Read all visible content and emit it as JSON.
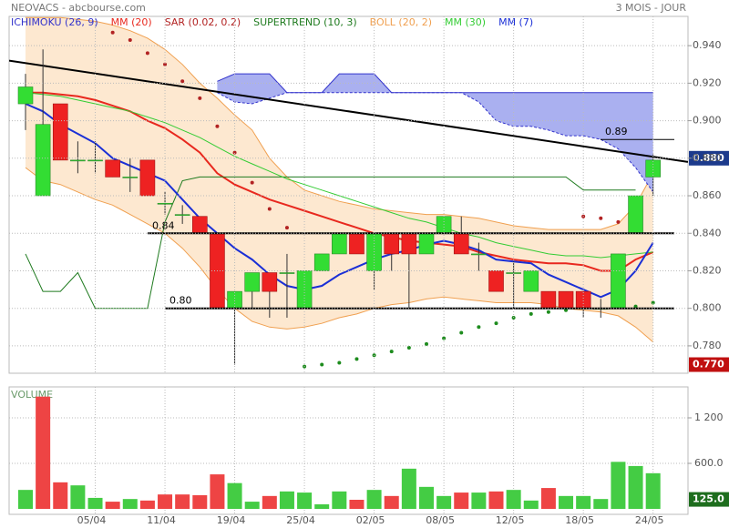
{
  "chart_data": [
    {
      "type": "candlestick",
      "title": "NEOVACS - abcbourse.com",
      "subtitle": "3 MOIS - JOUR",
      "categories": [
        null,
        null,
        null,
        null,
        "05/04",
        null,
        null,
        null,
        "11/04",
        null,
        null,
        null,
        "19/04",
        null,
        null,
        null,
        "25/04",
        null,
        null,
        null,
        "02/05",
        null,
        null,
        null,
        "08/05",
        null,
        null,
        null,
        "12/05",
        null,
        null,
        null,
        "18/05",
        null,
        null,
        null,
        "24/05"
      ],
      "open": [
        0.909,
        0.86,
        0.909,
        0.879,
        0.879,
        0.879,
        0.87,
        0.879,
        0.856,
        0.85,
        0.849,
        0.84,
        0.8,
        0.809,
        0.819,
        0.819,
        0.8,
        0.82,
        0.829,
        0.84,
        0.82,
        0.84,
        0.84,
        0.829,
        0.84,
        0.84,
        0.829,
        0.82,
        0.819,
        0.809,
        0.809,
        0.809,
        0.809,
        0.8,
        0.8,
        0.84,
        0.87
      ],
      "high": [
        0.925,
        0.938,
        0.909,
        0.889,
        0.889,
        0.879,
        0.88,
        0.879,
        0.862,
        0.855,
        0.849,
        0.84,
        0.809,
        0.819,
        0.819,
        0.829,
        0.82,
        0.829,
        0.84,
        0.84,
        0.84,
        0.84,
        0.84,
        0.84,
        0.849,
        0.849,
        0.835,
        0.82,
        0.825,
        0.82,
        0.809,
        0.809,
        0.809,
        0.805,
        0.829,
        0.86,
        0.882
      ],
      "low": [
        0.895,
        0.86,
        0.879,
        0.872,
        0.872,
        0.87,
        0.862,
        0.86,
        0.85,
        0.845,
        0.84,
        0.8,
        0.77,
        0.8,
        0.795,
        0.795,
        0.8,
        0.82,
        0.829,
        0.829,
        0.81,
        0.82,
        0.8,
        0.829,
        0.84,
        0.829,
        0.82,
        0.809,
        0.8,
        0.809,
        0.8,
        0.8,
        0.795,
        0.795,
        0.8,
        0.84,
        0.86
      ],
      "close": [
        0.918,
        0.898,
        0.879,
        0.879,
        0.879,
        0.87,
        0.87,
        0.86,
        0.856,
        0.85,
        0.84,
        0.8,
        0.809,
        0.819,
        0.809,
        0.819,
        0.82,
        0.829,
        0.84,
        0.829,
        0.84,
        0.829,
        0.829,
        0.84,
        0.849,
        0.829,
        0.829,
        0.809,
        0.819,
        0.82,
        0.8,
        0.8,
        0.8,
        0.8,
        0.829,
        0.86,
        0.879
      ],
      "up_color": "#33dd33",
      "down_color": "#ee2222",
      "ylim": [
        0.7654,
        0.9556
      ],
      "yticks": [
        {
          "value": 0.78,
          "label": "0.780"
        },
        {
          "value": 0.8,
          "label": "0.800"
        },
        {
          "value": 0.82,
          "label": "0.820"
        },
        {
          "value": 0.84,
          "label": "0.840"
        },
        {
          "value": 0.86,
          "label": "0.860"
        },
        {
          "value": 0.88,
          "label": "0.880"
        },
        {
          "value": 0.9,
          "label": "0.900"
        },
        {
          "value": 0.92,
          "label": "0.920"
        },
        {
          "value": 0.94,
          "label": "0.940"
        }
      ],
      "grid": true,
      "series": [
        {
          "name": "ICHIMOKU (26, 9)",
          "color": "#3333cc",
          "fill": "#aab0f0",
          "span_a": [
            null,
            null,
            null,
            null,
            null,
            null,
            null,
            null,
            null,
            null,
            null,
            0.921,
            0.925,
            0.925,
            0.925,
            0.915,
            0.915,
            0.915,
            0.925,
            0.925,
            0.925,
            0.915,
            0.915,
            0.915,
            0.915,
            0.915,
            0.915,
            0.915,
            0.915,
            0.915,
            0.915,
            0.915,
            0.915,
            0.915,
            0.915,
            0.915,
            0.915
          ],
          "span_b": [
            null,
            null,
            null,
            null,
            null,
            null,
            null,
            null,
            null,
            null,
            null,
            0.915,
            0.91,
            0.909,
            0.912,
            0.915,
            0.915,
            0.915,
            0.915,
            0.915,
            0.915,
            0.915,
            0.915,
            0.915,
            0.915,
            0.915,
            0.91,
            0.9,
            0.897,
            0.897,
            0.895,
            0.892,
            0.892,
            0.89,
            0.885,
            0.875,
            0.862
          ]
        },
        {
          "name": "MM (20)",
          "color": "#e8281e",
          "values": [
            0.915,
            0.915,
            0.914,
            0.913,
            0.911,
            0.908,
            0.905,
            0.9,
            0.896,
            0.89,
            0.883,
            0.872,
            0.866,
            0.862,
            0.858,
            0.855,
            0.852,
            0.849,
            0.846,
            0.843,
            0.84,
            0.838,
            0.836,
            0.835,
            0.834,
            0.833,
            0.83,
            0.828,
            0.826,
            0.825,
            0.824,
            0.824,
            0.823,
            0.82,
            0.82,
            0.826,
            0.83
          ]
        },
        {
          "name": "SAR (0.02, 0.2)",
          "color": "#b22222",
          "below_color": "#1e8c1e",
          "style": "dots",
          "values": [
            null,
            null,
            null,
            null,
            null,
            0.947,
            0.943,
            0.936,
            0.93,
            0.921,
            0.912,
            0.897,
            0.883,
            0.867,
            0.853,
            0.843,
            0.769,
            0.77,
            0.771,
            0.773,
            0.775,
            0.777,
            0.779,
            0.781,
            0.784,
            0.787,
            0.79,
            0.792,
            0.795,
            0.797,
            0.798,
            0.799,
            0.849,
            0.848,
            0.846,
            0.801,
            0.803
          ]
        },
        {
          "name": "SUPERTREND (10, 3)",
          "color": "#1e7a1e",
          "values": [
            0.829,
            0.809,
            0.809,
            0.819,
            0.8,
            0.8,
            0.8,
            0.8,
            0.846,
            0.868,
            0.87,
            0.87,
            0.87,
            0.87,
            0.87,
            0.87,
            0.87,
            0.87,
            0.87,
            0.87,
            0.87,
            0.87,
            0.87,
            0.87,
            0.87,
            0.87,
            0.87,
            0.87,
            0.87,
            0.87,
            0.87,
            0.87,
            0.863,
            0.863,
            0.863,
            0.863,
            null
          ]
        },
        {
          "name": "BOLL (20, 2)",
          "color": "#f0a050",
          "fill": "#fde8d0",
          "upper": [
            0.955,
            0.955,
            0.955,
            0.954,
            0.953,
            0.951,
            0.948,
            0.944,
            0.938,
            0.93,
            0.92,
            0.912,
            0.903,
            0.895,
            0.88,
            0.87,
            0.863,
            0.86,
            0.857,
            0.855,
            0.853,
            0.852,
            0.851,
            0.85,
            0.85,
            0.849,
            0.848,
            0.846,
            0.844,
            0.843,
            0.842,
            0.842,
            0.842,
            0.842,
            0.845,
            0.855,
            0.872
          ],
          "lower": [
            0.875,
            0.868,
            0.866,
            0.862,
            0.858,
            0.855,
            0.85,
            0.845,
            0.84,
            0.832,
            0.822,
            0.81,
            0.8,
            0.793,
            0.79,
            0.789,
            0.79,
            0.792,
            0.795,
            0.797,
            0.8,
            0.802,
            0.803,
            0.805,
            0.806,
            0.805,
            0.804,
            0.803,
            0.803,
            0.803,
            0.802,
            0.8,
            0.799,
            0.798,
            0.796,
            0.79,
            0.782
          ]
        },
        {
          "name": "MM (30)",
          "color": "#33cc33",
          "values": [
            0.915,
            0.914,
            0.913,
            0.911,
            0.909,
            0.907,
            0.905,
            0.902,
            0.899,
            0.895,
            0.891,
            0.886,
            0.881,
            0.877,
            0.873,
            0.869,
            0.866,
            0.863,
            0.86,
            0.857,
            0.854,
            0.851,
            0.848,
            0.846,
            0.843,
            0.84,
            0.838,
            0.835,
            0.833,
            0.831,
            0.829,
            0.828,
            0.828,
            0.827,
            0.828,
            0.829,
            0.83
          ]
        },
        {
          "name": "MM (7)",
          "color": "#1a2fd6",
          "values": [
            0.909,
            0.905,
            0.898,
            0.893,
            0.888,
            0.88,
            0.876,
            0.872,
            0.868,
            0.858,
            0.848,
            0.84,
            0.832,
            0.826,
            0.818,
            0.812,
            0.81,
            0.812,
            0.818,
            0.822,
            0.826,
            0.829,
            0.831,
            0.834,
            0.836,
            0.834,
            0.831,
            0.826,
            0.825,
            0.824,
            0.818,
            0.814,
            0.81,
            0.806,
            0.81,
            0.82,
            0.835
          ]
        }
      ],
      "levels": [
        {
          "value": 0.84,
          "label": "0.84"
        },
        {
          "value": 0.8,
          "label": "0.80"
        },
        {
          "value": 0.89,
          "label": "0.89"
        }
      ],
      "trendline": {
        "x": [
          -0.94,
          38
        ],
        "y": [
          0.932,
          0.878
        ]
      },
      "markers": [
        {
          "value": 0.88,
          "label": "0.880",
          "color": "#1c3a8c"
        },
        {
          "value": 0.77,
          "label": "0.770",
          "color": "#c01010"
        }
      ]
    },
    {
      "type": "bar",
      "title": "VOLUME",
      "values": [
        250,
        1480,
        350,
        310,
        145,
        95,
        130,
        110,
        190,
        190,
        180,
        455,
        340,
        95,
        170,
        230,
        215,
        60,
        230,
        120,
        250,
        170,
        530,
        290,
        170,
        215,
        215,
        230,
        250,
        110,
        275,
        170,
        170,
        130,
        620,
        565,
        470
      ],
      "up_color": "#44cc44",
      "down_color": "#ee4444",
      "ylim": [
        -72,
        1608
      ],
      "yticks": [
        {
          "value": 600,
          "label": "600.0"
        },
        {
          "value": 1200,
          "label": "1 200"
        }
      ],
      "grid": true,
      "markers": [
        {
          "value": 125,
          "label": "125.0",
          "color": "#1e6e1e"
        }
      ]
    }
  ]
}
